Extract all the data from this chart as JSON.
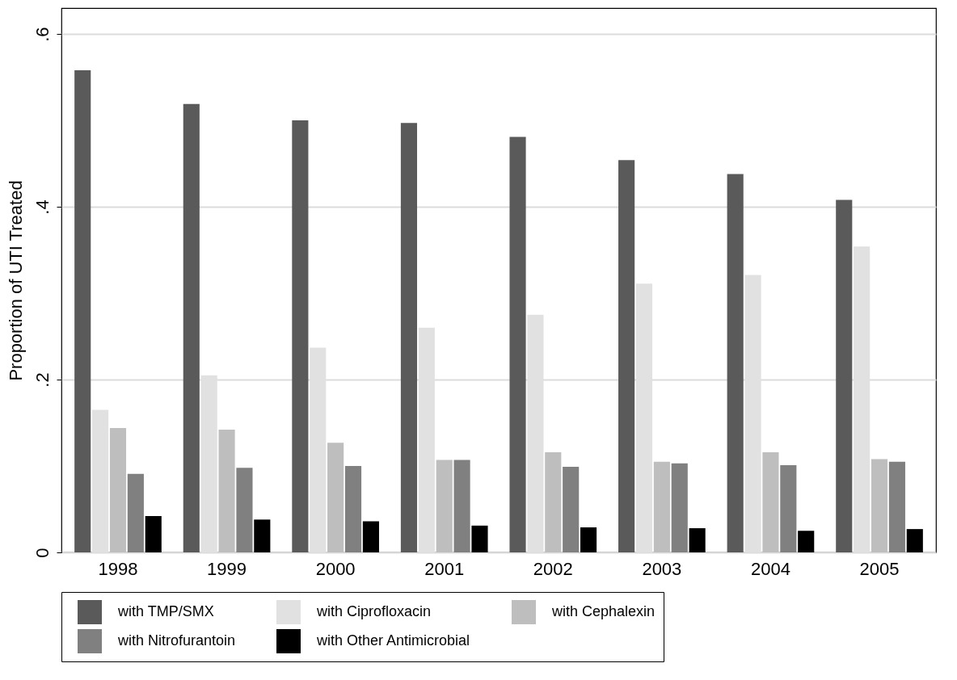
{
  "chart_data": {
    "type": "bar",
    "ylabel": "Proportion of UTI Treated",
    "categories": [
      "1998",
      "1999",
      "2000",
      "2001",
      "2002",
      "2003",
      "2004",
      "2005"
    ],
    "series": [
      {
        "name": "with TMP/SMX",
        "color": "#5a5a5a",
        "values": [
          0.558,
          0.519,
          0.5,
          0.497,
          0.481,
          0.454,
          0.438,
          0.408
        ]
      },
      {
        "name": "with Ciprofloxacin",
        "color": "#e1e1e1",
        "values": [
          0.165,
          0.205,
          0.237,
          0.26,
          0.275,
          0.311,
          0.321,
          0.354
        ]
      },
      {
        "name": "with Cephalexin",
        "color": "#bebebe",
        "values": [
          0.144,
          0.142,
          0.127,
          0.107,
          0.116,
          0.105,
          0.116,
          0.108
        ]
      },
      {
        "name": "with Nitrofurantoin",
        "color": "#808080",
        "values": [
          0.091,
          0.098,
          0.1,
          0.107,
          0.099,
          0.103,
          0.101,
          0.105
        ]
      },
      {
        "name": "with Other Antimicrobial",
        "color": "#000000",
        "values": [
          0.042,
          0.038,
          0.036,
          0.031,
          0.029,
          0.028,
          0.025,
          0.027
        ]
      }
    ],
    "ylim": [
      0,
      0.63
    ],
    "yticks": [
      0,
      {
        "value": 0.2,
        "label": ".2"
      },
      {
        "value": 0.4,
        "label": ".4"
      },
      {
        "value": 0.6,
        "label": ".6"
      }
    ],
    "grid": "y",
    "legend": "bottom"
  }
}
